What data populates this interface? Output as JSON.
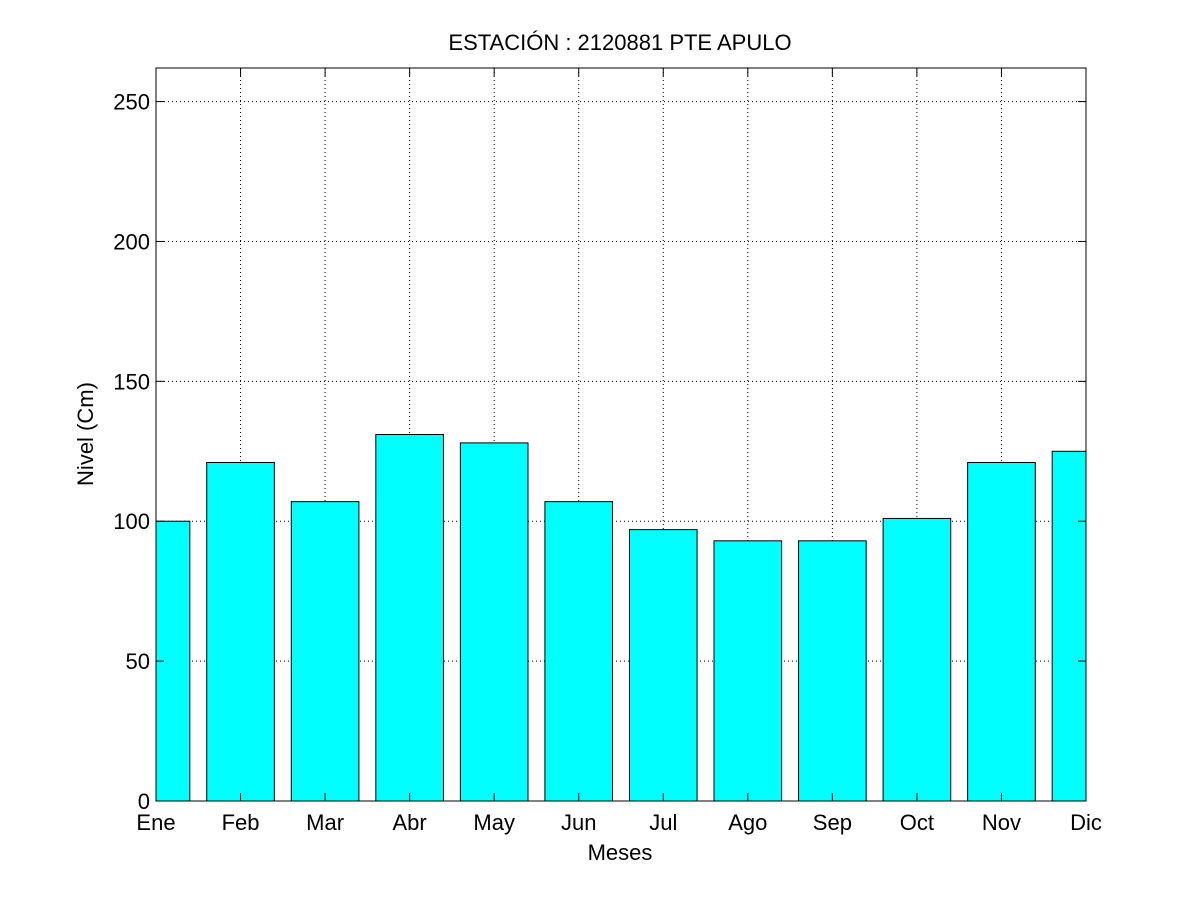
{
  "chart_data": {
    "type": "bar",
    "title": "ESTACIÓN :  2120881  PTE APULO",
    "xlabel": "Meses",
    "ylabel": "Nivel (Cm)",
    "categories": [
      "Ene",
      "Feb",
      "Mar",
      "Abr",
      "May",
      "Jun",
      "Jul",
      "Ago",
      "Sep",
      "Oct",
      "Nov",
      "Dic"
    ],
    "values": [
      100,
      121,
      107,
      131,
      128,
      107,
      97,
      93,
      93,
      101,
      121,
      125
    ],
    "ylim": [
      0,
      262
    ],
    "yticks": [
      0,
      50,
      100,
      150,
      200,
      250
    ],
    "grid": true,
    "bar_color": "#00ffff"
  }
}
